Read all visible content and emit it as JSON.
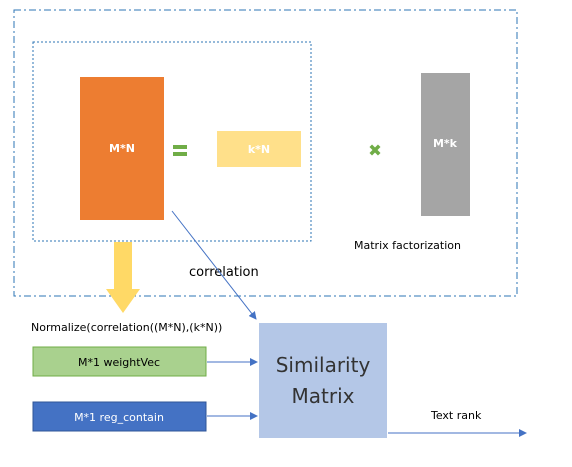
{
  "blocks": {
    "mn": "M*N",
    "kn": "k*N",
    "mk": "M*k",
    "equals_symbol": "=",
    "times_symbol": "✖"
  },
  "labels": {
    "matrix_factorization": "Matrix factorization",
    "correlation": "correlation",
    "normalize": "Normalize(correlation((M*N),(k*N))",
    "text_rank": "Text rank"
  },
  "inputs": {
    "weight_vec": "M*1 weightVec",
    "reg_contain": "M*1 reg_contain"
  },
  "similarity": {
    "line1": "Similarity",
    "line2": "Matrix"
  },
  "colors": {
    "mn_fill": "#ED7D31",
    "kn_fill": "#FFE08A",
    "mk_fill": "#A5A5A5",
    "weight_fill": "#A9D18E",
    "reg_fill": "#4472C4",
    "similarity_fill": "#B4C7E7",
    "arrow_blue": "#4472C4",
    "equals_green": "#70AD47",
    "big_arrow": "#FFD966",
    "dash_border": "#2E75B6"
  },
  "icons": {
    "equals": "equals-icon",
    "times": "multiply-icon",
    "down_arrow": "down-arrow-icon"
  }
}
